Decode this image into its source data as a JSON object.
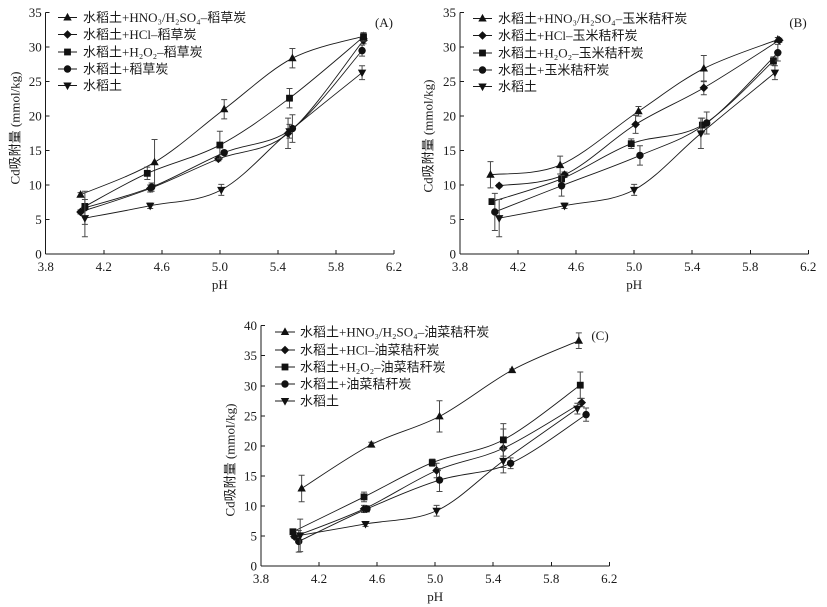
{
  "colors": {
    "line": "#1a1a1a",
    "marker": "#111111",
    "errorbar": "#4a4a4a",
    "background": "#ffffff"
  },
  "chart_data": [
    {
      "type": "line",
      "panel_label": "(A)",
      "title": "",
      "xlabel": "pH",
      "ylabel": "Cd吸附量 (mmol/kg)",
      "xlim": [
        3.8,
        6.2
      ],
      "ylim": [
        0,
        35
      ],
      "xticks": [
        "3.8",
        "4.2",
        "4.6",
        "5.0",
        "5.4",
        "5.8",
        "6.2"
      ],
      "yticks": [
        "0",
        "5",
        "10",
        "15",
        "20",
        "25",
        "30",
        "35"
      ],
      "grid": false,
      "legend_position": "top-left",
      "series": [
        {
          "name": "水稻土+HNO₃/H₂SO₄–稻草炭",
          "marker": "triangle-up",
          "x": [
            4.04,
            4.55,
            5.03,
            5.5,
            5.99
          ],
          "y": [
            8.6,
            13.3,
            21.0,
            28.4,
            31.6
          ],
          "error": [
            0.3,
            3.3,
            1.4,
            1.4,
            0.5
          ]
        },
        {
          "name": "水稻土+HCl–稻草炭",
          "marker": "diamond",
          "x": [
            4.04,
            4.52,
            4.99,
            5.47,
            5.99
          ],
          "y": [
            6.1,
            9.5,
            13.8,
            17.5,
            31.0
          ],
          "error": [
            0.3,
            0.5,
            0.3,
            2.2,
            0.5
          ]
        },
        {
          "name": "水稻土+H₂O₂–稻草炭",
          "marker": "square",
          "x": [
            4.07,
            4.5,
            5.0,
            5.48,
            5.99
          ],
          "y": [
            6.9,
            11.7,
            15.8,
            22.6,
            31.5
          ],
          "error": [
            0.4,
            0.9,
            2.0,
            1.4,
            0.6
          ]
        },
        {
          "name": "水稻土+稻草炭",
          "marker": "circle",
          "x": [
            4.07,
            4.53,
            5.03,
            5.5,
            5.98
          ],
          "y": [
            6.7,
            9.7,
            14.7,
            18.2,
            29.5
          ],
          "error": [
            2.4,
            0.6,
            0.3,
            2.0,
            0.8
          ]
        },
        {
          "name": "水稻土",
          "marker": "triangle-down",
          "x": [
            4.07,
            4.52,
            5.01,
            5.48,
            5.98
          ],
          "y": [
            5.2,
            7.0,
            9.3,
            17.8,
            26.3
          ],
          "error": [
            2.7,
            0.4,
            0.8,
            1.0,
            1.0
          ]
        }
      ]
    },
    {
      "type": "line",
      "panel_label": "(B)",
      "title": "",
      "xlabel": "pH",
      "ylabel": "Cd吸附量 (mmol/kg)",
      "xlim": [
        3.8,
        6.2
      ],
      "ylim": [
        0,
        35
      ],
      "xticks": [
        "3.8",
        "4.2",
        "4.6",
        "5.0",
        "5.4",
        "5.8",
        "6.2"
      ],
      "yticks": [
        "0",
        "5",
        "10",
        "15",
        "20",
        "25",
        "30",
        "35"
      ],
      "grid": false,
      "legend_position": "top-left",
      "series": [
        {
          "name": "水稻土+HNO₃/H₂SO₄–玉米秸秆炭",
          "marker": "triangle-up",
          "x": [
            4.01,
            4.49,
            5.03,
            5.48,
            5.99
          ],
          "y": [
            11.5,
            12.9,
            20.7,
            26.9,
            31.1
          ],
          "error": [
            1.9,
            1.3,
            0.7,
            1.9,
            0.3
          ]
        },
        {
          "name": "水稻土+HCl–玉米秸秆炭",
          "marker": "diamond",
          "x": [
            4.07,
            4.52,
            5.01,
            5.48,
            6.0
          ],
          "y": [
            9.9,
            11.5,
            18.8,
            24.1,
            31.0
          ],
          "error": [
            0.2,
            0.4,
            1.3,
            1.0,
            0.3
          ]
        },
        {
          "name": "水稻土+H₂O₂–玉米秸秆炭",
          "marker": "square",
          "x": [
            4.02,
            4.5,
            4.98,
            5.47,
            5.96
          ],
          "y": [
            7.6,
            10.9,
            16.0,
            18.7,
            28.0
          ],
          "error": [
            0.3,
            0.4,
            0.7,
            1.0,
            0.6
          ]
        },
        {
          "name": "水稻土+玉米秸秆炭",
          "marker": "circle",
          "x": [
            4.04,
            4.5,
            5.04,
            5.5,
            5.99
          ],
          "y": [
            6.1,
            9.9,
            14.3,
            19.0,
            29.2
          ],
          "error": [
            2.7,
            1.5,
            1.4,
            1.6,
            1.2
          ]
        },
        {
          "name": "水稻土",
          "marker": "triangle-down",
          "x": [
            4.07,
            4.52,
            5.0,
            5.46,
            5.97
          ],
          "y": [
            5.2,
            7.0,
            9.3,
            17.5,
            26.3
          ],
          "error": [
            2.7,
            0.4,
            0.8,
            2.2,
            1.0
          ]
        }
      ]
    },
    {
      "type": "line",
      "panel_label": "(C)",
      "title": "",
      "xlabel": "pH",
      "ylabel": "Cd吸附量 (mmol/kg)",
      "xlim": [
        3.8,
        6.2
      ],
      "ylim": [
        0,
        40
      ],
      "xticks": [
        "3.8",
        "4.2",
        "4.6",
        "5.0",
        "5.4",
        "5.8",
        "6.2"
      ],
      "yticks": [
        "0",
        "5",
        "10",
        "15",
        "20",
        "25",
        "30",
        "35",
        "40"
      ],
      "grid": false,
      "legend_position": "top-left",
      "series": [
        {
          "name": "水稻土+HNO₃/H₂SO₄–油菜秸秆炭",
          "marker": "triangle-up",
          "x": [
            4.08,
            4.56,
            5.03,
            5.53,
            5.99
          ],
          "y": [
            12.9,
            20.2,
            24.9,
            32.6,
            37.5
          ],
          "error": [
            2.2,
            0.4,
            2.6,
            0.2,
            1.3
          ]
        },
        {
          "name": "水稻土+HCl–油菜秸秆炭",
          "marker": "diamond",
          "x": [
            4.03,
            4.51,
            5.01,
            5.47,
            6.01
          ],
          "y": [
            4.9,
            9.5,
            15.9,
            19.6,
            27.2
          ],
          "error": [
            0.3,
            0.6,
            1.2,
            3.2,
            0.7
          ]
        },
        {
          "name": "水稻土+H₂O₂–油菜秸秆炭",
          "marker": "square",
          "x": [
            4.02,
            4.51,
            4.98,
            5.47,
            6.0
          ],
          "y": [
            5.7,
            11.5,
            17.2,
            21.0,
            30.1
          ],
          "error": [
            0.3,
            0.8,
            0.6,
            2.7,
            2.2
          ]
        },
        {
          "name": "水稻土+油菜秸秆炭",
          "marker": "circle",
          "x": [
            4.06,
            4.53,
            5.03,
            5.52,
            6.04
          ],
          "y": [
            4.1,
            9.5,
            14.3,
            17.1,
            25.2
          ],
          "error": [
            1.8,
            0.5,
            1.9,
            0.9,
            1.1
          ]
        },
        {
          "name": "水稻土",
          "marker": "triangle-down",
          "x": [
            4.07,
            4.52,
            5.01,
            5.47,
            5.98
          ],
          "y": [
            5.1,
            7.0,
            9.2,
            17.5,
            26.2
          ],
          "error": [
            2.7,
            0.4,
            0.9,
            2.0,
            0.9
          ]
        }
      ]
    }
  ]
}
